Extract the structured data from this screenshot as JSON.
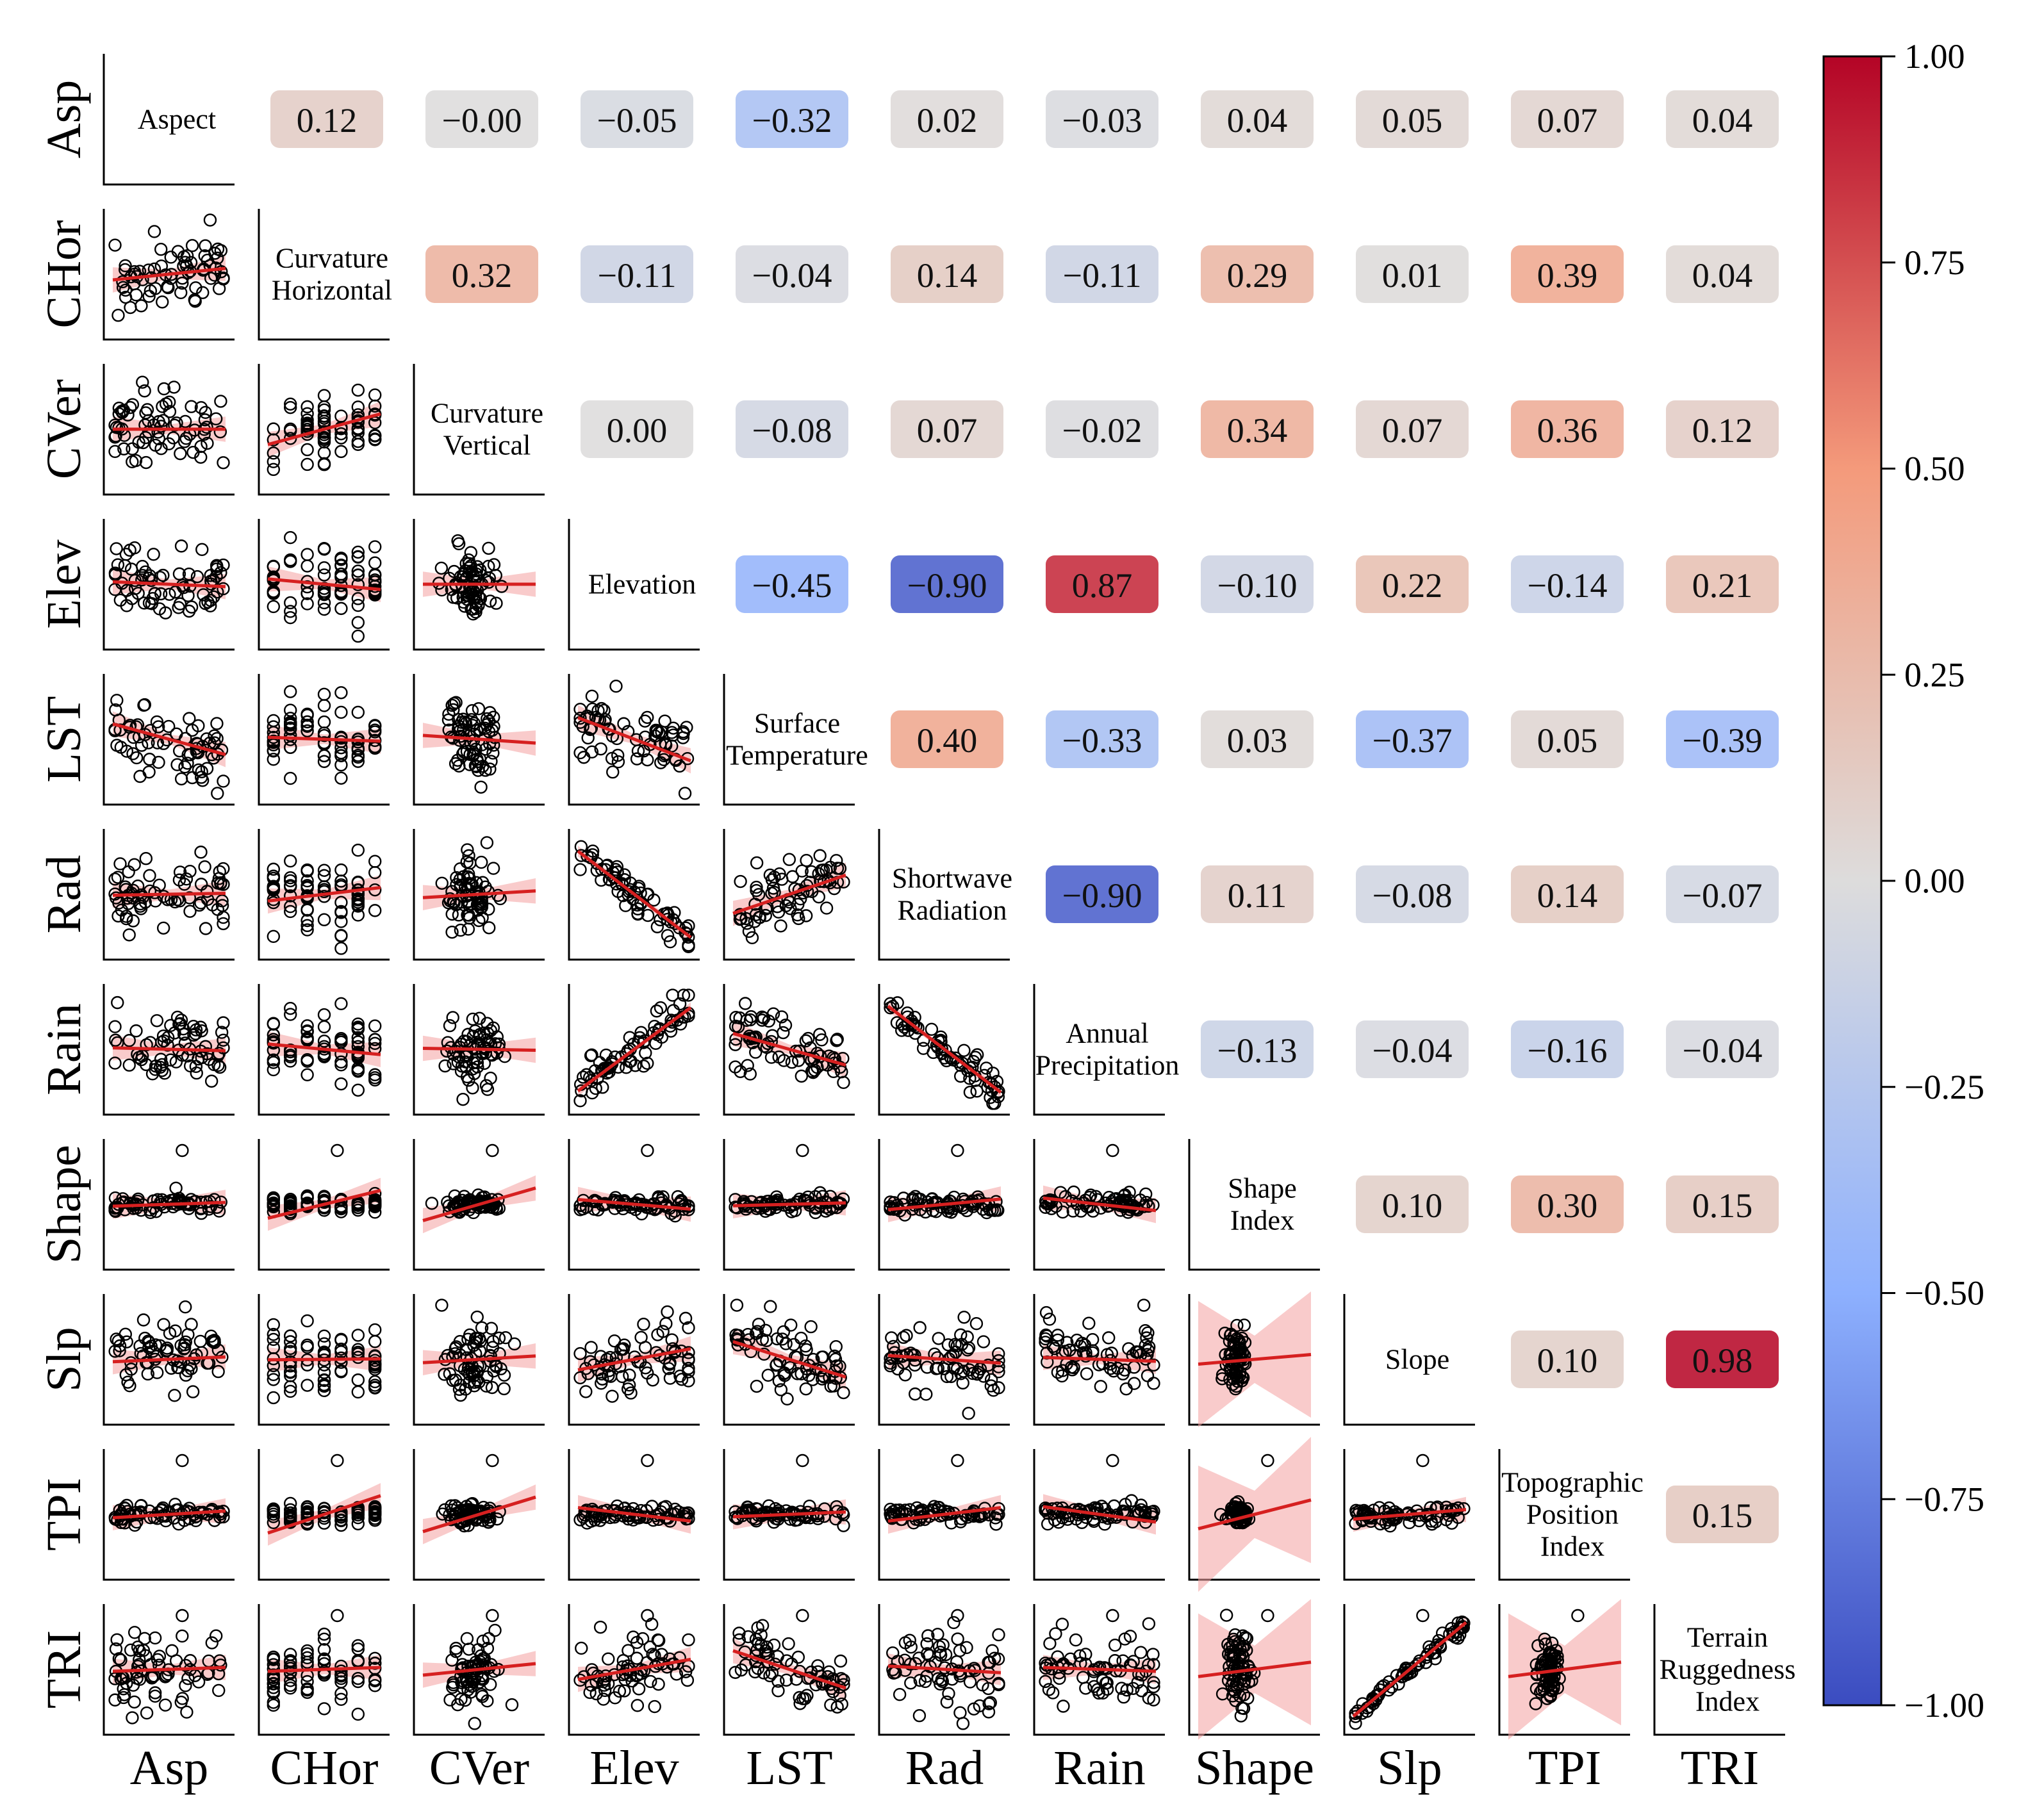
{
  "chart_data": {
    "type": "heatmap",
    "subtype": "pair-plot-correlation-matrix",
    "variables": [
      "Asp",
      "CHor",
      "CVer",
      "Elev",
      "LST",
      "Rad",
      "Rain",
      "Shape",
      "Slp",
      "TPI",
      "TRI"
    ],
    "full_names": [
      [
        "Aspect"
      ],
      [
        "Curvature",
        "Horizontal"
      ],
      [
        "Curvature",
        "Vertical"
      ],
      [
        "Elevation"
      ],
      [
        "Surface",
        "Temperature"
      ],
      [
        "Shortwave",
        "Radiation"
      ],
      [
        "Annual",
        "Precipitation"
      ],
      [
        "Shape",
        "Index"
      ],
      [
        "Slope"
      ],
      [
        "Topographic",
        "Position",
        "Index"
      ],
      [
        "Terrain",
        "Ruggedness",
        "Index"
      ]
    ],
    "correlations": [
      [
        "0.12",
        "−0.00",
        "−0.05",
        "−0.32",
        "0.02",
        "−0.03",
        "0.04",
        "0.05",
        "0.07",
        "0.04"
      ],
      [
        "0.32",
        "−0.11",
        "−0.04",
        "0.14",
        "−0.11",
        "0.29",
        "0.01",
        "0.39",
        "0.04"
      ],
      [
        "0.00",
        "−0.08",
        "0.07",
        "−0.02",
        "0.34",
        "0.07",
        "0.36",
        "0.12"
      ],
      [
        "−0.45",
        "−0.90",
        "0.87",
        "−0.10",
        "0.22",
        "−0.14",
        "0.21"
      ],
      [
        "0.40",
        "−0.33",
        "0.03",
        "−0.37",
        "0.05",
        "−0.39"
      ],
      [
        "−0.90",
        "0.11",
        "−0.08",
        "0.14",
        "−0.07"
      ],
      [
        "−0.13",
        "−0.04",
        "−0.16",
        "−0.04"
      ],
      [
        "0.10",
        "0.30",
        "0.15"
      ],
      [
        "0.10",
        "0.98"
      ],
      [
        "0.15"
      ]
    ],
    "colorbar": {
      "colormap": "coolwarm",
      "range": [
        -1.0,
        1.0
      ],
      "tick_labels": [
        "1.00",
        "0.75",
        "0.50",
        "0.25",
        "0.00",
        "−0.25",
        "−0.50",
        "−0.75",
        "−1.00"
      ]
    },
    "lower_triangle": "scatter plots with red linear regression line and light-red confidence band"
  },
  "colors": {
    "regression_line": "#d62020",
    "confidence_band": "#f4a0a0",
    "axis": "#000000",
    "marker": "#000000"
  }
}
